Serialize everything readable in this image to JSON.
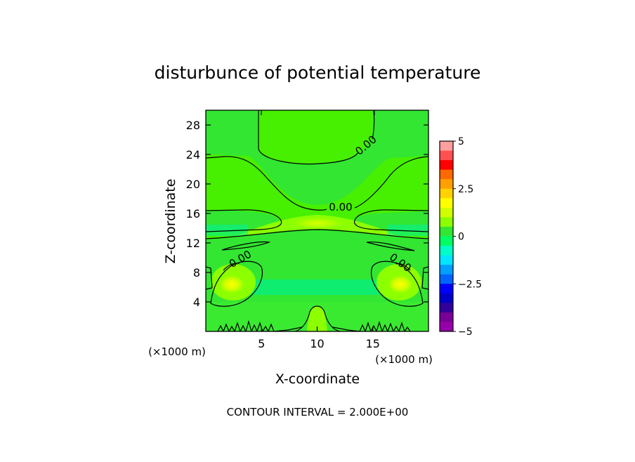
{
  "chart_data": {
    "type": "heatmap",
    "title": "disturbunce of potential temperature",
    "xlabel": "X-coordinate",
    "ylabel": "Z-coordinate",
    "x_unit": "(×1000 m)",
    "z_unit": "(×1000 m)",
    "xlim": [
      0,
      20
    ],
    "ylim": [
      0,
      30
    ],
    "x_ticks": [
      5,
      10,
      15
    ],
    "y_ticks": [
      4,
      8,
      12,
      16,
      20,
      24,
      28
    ],
    "colorbar": {
      "range": [
        -5,
        5
      ],
      "tick_labels": [
        "5",
        "2.5",
        "0",
        "−2.5",
        "−5"
      ],
      "colors": [
        "#ff9f9f",
        "#ff5050",
        "#ff0000",
        "#ff6a00",
        "#ffa000",
        "#ffd200",
        "#ffff00",
        "#d2ff00",
        "#8cff00",
        "#32e632",
        "#00ff64",
        "#00ffc8",
        "#00e6ff",
        "#00a0ff",
        "#0064ff",
        "#0000ff",
        "#0000c8",
        "#32009a",
        "#780096",
        "#9600aa"
      ]
    },
    "contour_labels": [
      "0.00",
      "0.00",
      "0.00",
      "0.00"
    ],
    "footer": "CONTOUR INTERVAL = 2.000E+00",
    "grid": false,
    "legend": "colorbar-right"
  }
}
